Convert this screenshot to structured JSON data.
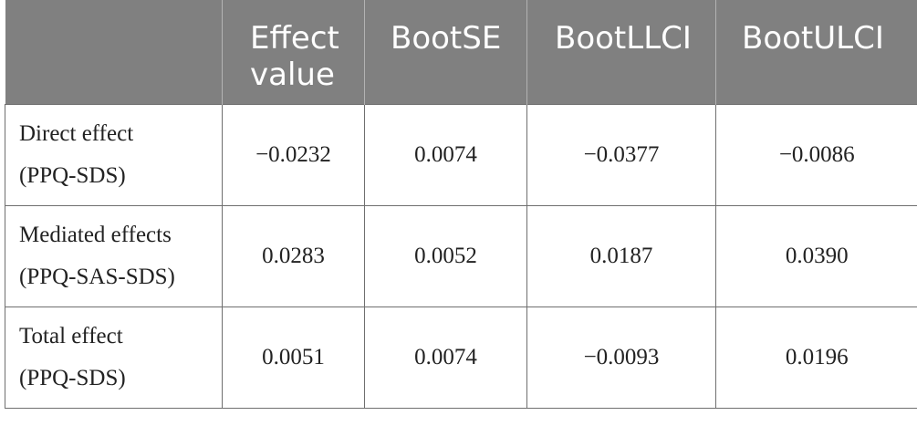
{
  "table": {
    "headers": [
      "",
      "Effect value",
      "BootSE",
      "BootLLCI",
      "BootULCI"
    ],
    "header_lines": {
      "effect": [
        "Effect",
        "value"
      ]
    },
    "rows": [
      {
        "label": [
          "Direct effect",
          "(PPQ-SDS)"
        ],
        "effect_value": "−0.0232",
        "boot_se": "0.0074",
        "boot_llci": "−0.0377",
        "boot_ulci": "−0.0086"
      },
      {
        "label": [
          "Mediated effects",
          "(PPQ-SAS-SDS)"
        ],
        "effect_value": "0.0283",
        "boot_se": "0.0052",
        "boot_llci": "0.0187",
        "boot_ulci": "0.0390"
      },
      {
        "label": [
          "Total effect",
          "(PPQ-SDS)"
        ],
        "effect_value": "0.0051",
        "boot_se": "0.0074",
        "boot_llci": "−0.0093",
        "boot_ulci": "0.0196"
      }
    ]
  },
  "colors": {
    "header_background": "#808080",
    "header_text": "#ffffff",
    "grid_line": "#6f6f6f"
  }
}
